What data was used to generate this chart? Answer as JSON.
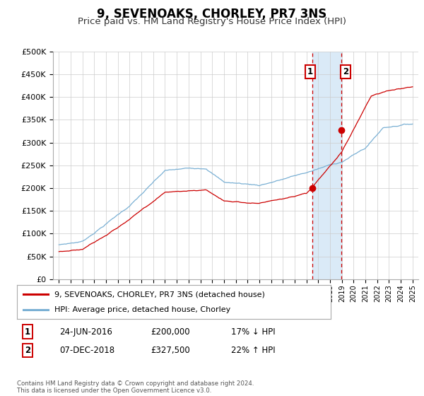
{
  "title": "9, SEVENOAKS, CHORLEY, PR7 3NS",
  "subtitle": "Price paid vs. HM Land Registry's House Price Index (HPI)",
  "title_fontsize": 12,
  "subtitle_fontsize": 9.5,
  "ylabel_ticks": [
    "£0",
    "£50K",
    "£100K",
    "£150K",
    "£200K",
    "£250K",
    "£300K",
    "£350K",
    "£400K",
    "£450K",
    "£500K"
  ],
  "ylabel_values": [
    0,
    50000,
    100000,
    150000,
    200000,
    250000,
    300000,
    350000,
    400000,
    450000,
    500000
  ],
  "ylim": [
    0,
    500000
  ],
  "xlim_start": 1994.5,
  "xlim_end": 2025.5,
  "legend_line1": "9, SEVENOAKS, CHORLEY, PR7 3NS (detached house)",
  "legend_line2": "HPI: Average price, detached house, Chorley",
  "legend_color1": "#cc0000",
  "legend_color2": "#7ab0d4",
  "transaction1_label": "1",
  "transaction1_date": "24-JUN-2016",
  "transaction1_price": "£200,000",
  "transaction1_hpi": "17% ↓ HPI",
  "transaction1_year": 2016.48,
  "transaction1_value": 200000,
  "transaction2_label": "2",
  "transaction2_date": "07-DEC-2018",
  "transaction2_price": "£327,500",
  "transaction2_hpi": "22% ↑ HPI",
  "transaction2_year": 2018.93,
  "transaction2_value": 327500,
  "vline_color": "#cc0000",
  "highlight_color": "#daeaf7",
  "footnote": "Contains HM Land Registry data © Crown copyright and database right 2024.\nThis data is licensed under the Open Government Licence v3.0.",
  "bg_color": "#ffffff",
  "grid_color": "#cccccc"
}
